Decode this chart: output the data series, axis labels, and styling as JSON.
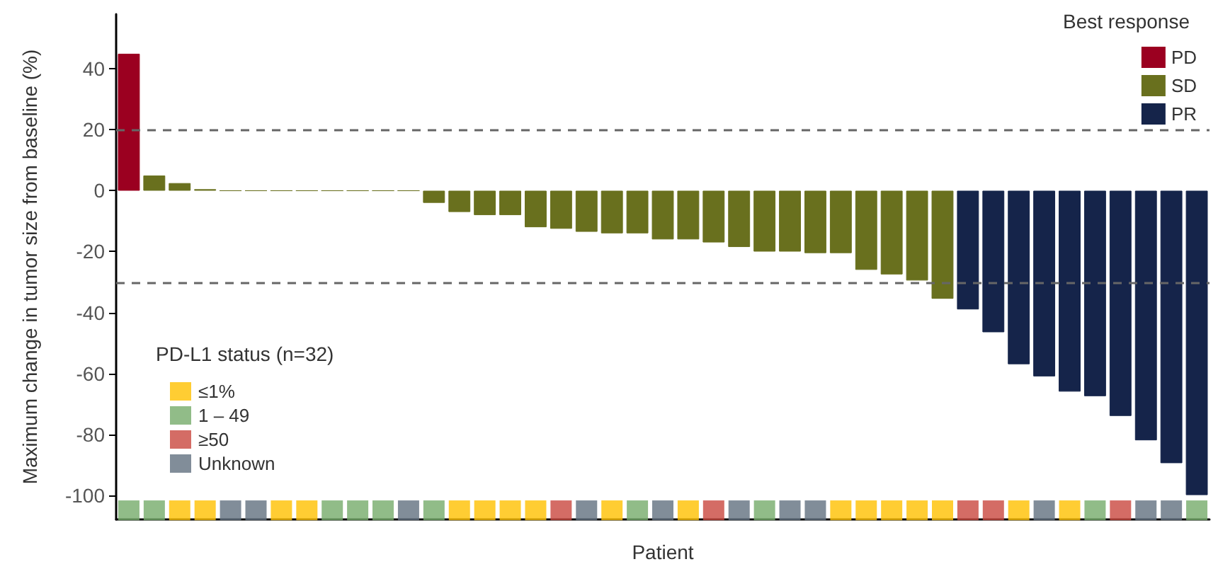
{
  "chart_data": {
    "type": "bar",
    "stacked": true,
    "categories": [
      null,
      null,
      null,
      null,
      null,
      null,
      null,
      null,
      null,
      null,
      null,
      null,
      null,
      null,
      null,
      null,
      null,
      null,
      null,
      null,
      null,
      null,
      null,
      null,
      null,
      null,
      null,
      null,
      null,
      null,
      null,
      null,
      null,
      null,
      null,
      null,
      null,
      null,
      null,
      null,
      null,
      null,
      null
    ],
    "xlabel": "Patient",
    "ylabel": "Maximum change in tumor size from baseline (%)",
    "legend_title": "Best response",
    "legend": "top right",
    "grid": false,
    "tick_labels": "y",
    "ylim": [
      -108,
      58
    ],
    "yticks": [
      {
        "value": 40,
        "label": "40"
      },
      {
        "value": 20,
        "label": "20"
      },
      {
        "value": 0,
        "label": "0"
      },
      {
        "value": -20,
        "label": "-20"
      },
      {
        "value": -40,
        "label": "-40"
      },
      {
        "value": -60,
        "label": "-60"
      },
      {
        "value": -80,
        "label": "-80"
      },
      {
        "value": -100,
        "label": "-100"
      }
    ],
    "ref_lines": [
      {
        "axis": "y",
        "value": 20,
        "color": "#666666",
        "line_style": "dashed"
      },
      {
        "axis": "y",
        "value": -30,
        "color": "#666666",
        "line_style": "dashed"
      }
    ],
    "annotations": [
      "PD-L1 status (n=32)"
    ],
    "series": [
      {
        "name": "PD",
        "color": "#9b0020",
        "values": [
          45,
          null,
          null,
          null,
          null,
          null,
          null,
          null,
          null,
          null,
          null,
          null,
          null,
          null,
          null,
          null,
          null,
          null,
          null,
          null,
          null,
          null,
          null,
          null,
          null,
          null,
          null,
          null,
          null,
          null,
          null,
          null,
          null,
          null,
          null,
          null,
          null,
          null,
          null,
          null,
          null,
          null,
          null
        ]
      },
      {
        "name": "SD",
        "color": "#69701e",
        "values": [
          null,
          5,
          2.5,
          0.5,
          0,
          0,
          0,
          0,
          0,
          0,
          0,
          0,
          -4,
          -7,
          -8,
          -8,
          -12,
          -12.5,
          -13.5,
          -14,
          -14,
          -16,
          -16,
          -17,
          -18.5,
          -20,
          -20,
          -20.5,
          -20.5,
          -26,
          -27.5,
          -29.5,
          -35.5,
          null,
          null,
          null,
          null,
          null,
          null,
          null,
          null,
          null,
          null
        ]
      },
      {
        "name": "PR",
        "color": "#15244a",
        "values": [
          null,
          null,
          null,
          null,
          null,
          null,
          null,
          null,
          null,
          null,
          null,
          null,
          null,
          null,
          null,
          null,
          null,
          null,
          null,
          null,
          null,
          null,
          null,
          null,
          null,
          null,
          null,
          null,
          null,
          null,
          null,
          null,
          null,
          -39,
          -46.5,
          -57,
          -61,
          -66,
          -67.5,
          -74,
          -82,
          -89.5,
          -100
        ]
      },
      {
        "name": "≤1%",
        "type": "scatter",
        "marker": "square",
        "color": "#ffc000",
        "values": [
          null,
          null,
          -105,
          -105,
          null,
          null,
          -105,
          -105,
          null,
          null,
          null,
          null,
          null,
          -105,
          -105,
          -105,
          -105,
          null,
          null,
          -105,
          null,
          null,
          -105,
          null,
          null,
          null,
          null,
          null,
          -105,
          -105,
          -105,
          -105,
          -105,
          null,
          null,
          -105,
          null,
          -105,
          null,
          null,
          null,
          null,
          null
        ]
      },
      {
        "name": "1 – 49",
        "type": "scatter",
        "marker": "square",
        "color": "#76ab6a",
        "values": [
          -105,
          -105,
          null,
          null,
          null,
          null,
          null,
          null,
          -105,
          -105,
          -105,
          null,
          -105,
          null,
          null,
          null,
          null,
          null,
          null,
          null,
          -105,
          null,
          null,
          null,
          null,
          -105,
          null,
          null,
          null,
          null,
          null,
          null,
          null,
          null,
          null,
          null,
          null,
          null,
          -105,
          null,
          null,
          null,
          -105
        ]
      },
      {
        "name": "≥50",
        "type": "scatter",
        "marker": "square",
        "color": "#c9473e",
        "values": [
          null,
          null,
          null,
          null,
          null,
          null,
          null,
          null,
          null,
          null,
          null,
          null,
          null,
          null,
          null,
          null,
          null,
          -105,
          null,
          null,
          null,
          null,
          null,
          -105,
          null,
          null,
          null,
          null,
          null,
          null,
          null,
          null,
          null,
          -105,
          -105,
          null,
          null,
          null,
          null,
          -105,
          null,
          null,
          null
        ]
      },
      {
        "name": "Unknown",
        "type": "scatter",
        "marker": "square",
        "color": "#627080",
        "values": [
          null,
          null,
          null,
          null,
          -105,
          -105,
          null,
          null,
          null,
          null,
          null,
          -105,
          null,
          null,
          null,
          null,
          null,
          null,
          -105,
          null,
          null,
          -105,
          null,
          null,
          -105,
          null,
          -105,
          -105,
          null,
          null,
          null,
          null,
          null,
          null,
          null,
          null,
          -105,
          null,
          null,
          null,
          -105,
          -105,
          null
        ]
      }
    ]
  }
}
